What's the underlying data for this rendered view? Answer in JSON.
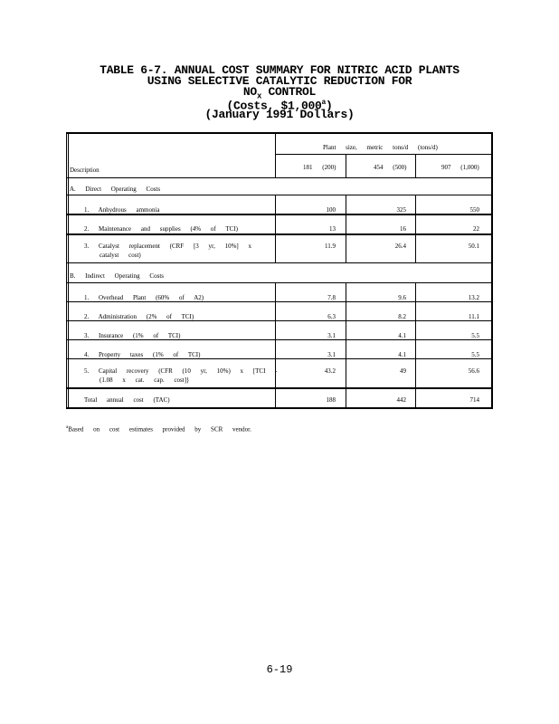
{
  "title": {
    "line1": "TABLE 6-7. ANNUAL COST SUMMARY FOR NITRIC ACID PLANTS",
    "line2": "USING SELECTIVE CATALYTIC REDUCTION FOR",
    "line3": "NO",
    "line3_sub": "x",
    "line3_rest": " CONTROL",
    "line4": "(Costs, $1,000",
    "line4_sup": "a",
    "line4_end": ")",
    "line5": "(January 1991 Dollars)"
  },
  "table": {
    "description_header": "Description",
    "plant_size_header": "Plant size, metric tons/d (tons/d)",
    "columns": [
      "181 (200)",
      "454 (500)",
      "907 (1,000)"
    ],
    "section_a": "A. Direct Operating Costs",
    "section_b": "B. Indirect Operating Costs",
    "rows": [
      {
        "label": "1. Anhydrous ammonia",
        "label2": "",
        "values": [
          "100",
          "325",
          "550"
        ]
      },
      {
        "label": "2. Maintenance and supplies (4% of TCI)",
        "label2": "",
        "values": [
          "13",
          "16",
          "22"
        ]
      },
      {
        "label": "3. Catalyst replacement (CRF [3 yr, 10%] x",
        "label2": "catalyst cost)",
        "values": [
          "11.9",
          "26.4",
          "50.1"
        ]
      },
      {
        "label": "1. Overhead Plant (60% of A2)",
        "label2": "",
        "values": [
          "7.8",
          "9.6",
          "13.2"
        ]
      },
      {
        "label": "2. Administration (2% of TCI)",
        "label2": "",
        "values": [
          "6.3",
          "8.2",
          "11.1"
        ]
      },
      {
        "label": "3. Insurance (1% of TCI)",
        "label2": "",
        "values": [
          "3.1",
          "4.1",
          "5.5"
        ]
      },
      {
        "label": "4. Property taxes (1% of TCI)",
        "label2": "",
        "values": [
          "3.1",
          "4.1",
          "5.5"
        ]
      },
      {
        "label": "5. Capital recovery (CFR (10 yr, 10%) x [TCI -",
        "label2": "(1.08 x cat. cap. cost]}",
        "values": [
          "43.2",
          "49",
          "56.6"
        ]
      }
    ],
    "total": {
      "label": "Total annual cost (TAC)",
      "values": [
        "188",
        "442",
        "714"
      ]
    }
  },
  "footnote": {
    "marker": "a",
    "text": "Based on cost estimates provided by SCR vendor."
  },
  "page_number": "6-19"
}
